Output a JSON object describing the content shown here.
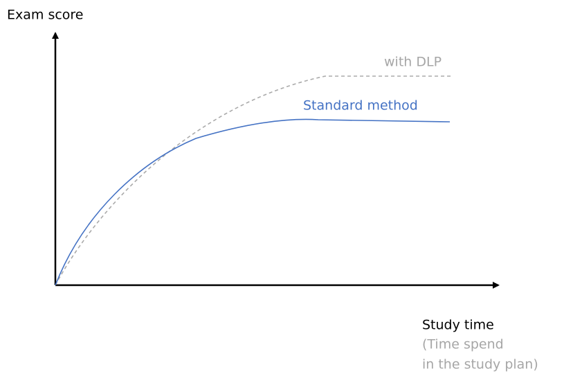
{
  "axes": {
    "y_label": "Exam score",
    "x_label": "Study time",
    "x_note": [
      "(Time spend",
      "in the study plan)"
    ]
  },
  "curves": [
    {
      "label": "with DLP"
    },
    {
      "label": "Standard method"
    }
  ]
}
